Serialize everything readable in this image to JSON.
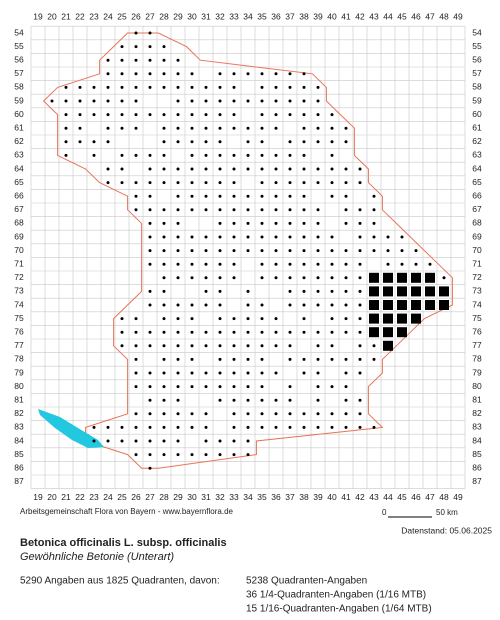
{
  "grid": {
    "columns": [
      19,
      20,
      21,
      22,
      23,
      24,
      25,
      26,
      27,
      28,
      29,
      30,
      31,
      32,
      33,
      34,
      35,
      36,
      37,
      38,
      39,
      40,
      41,
      42,
      43,
      44,
      45,
      46,
      47,
      48,
      49
    ],
    "rows": [
      54,
      55,
      56,
      57,
      58,
      59,
      60,
      61,
      62,
      63,
      64,
      65,
      66,
      67,
      68,
      69,
      70,
      71,
      72,
      73,
      74,
      75,
      76,
      77,
      78,
      79,
      80,
      81,
      82,
      83,
      84,
      85,
      86,
      87
    ]
  },
  "scale": {
    "start": "0",
    "end": "50 km"
  },
  "credit": "Arbeitsgemeinschaft Flora von Bayern - www.bayernflora.de",
  "date": "Datenstand: 05.06.2025",
  "title": "Betonica officinalis L. subsp. officinalis",
  "subtitle": "Gewöhnliche Betonie (Unterart)",
  "summary": "5290 Angaben aus 1825 Quadranten, davon:",
  "details": [
    "5238 Quadranten-Angaben",
    "36 1/4-Quadranten-Angaben (1/16 MTB)",
    "15 1/16-Quadranten-Angaben (1/64 MTB)"
  ]
}
